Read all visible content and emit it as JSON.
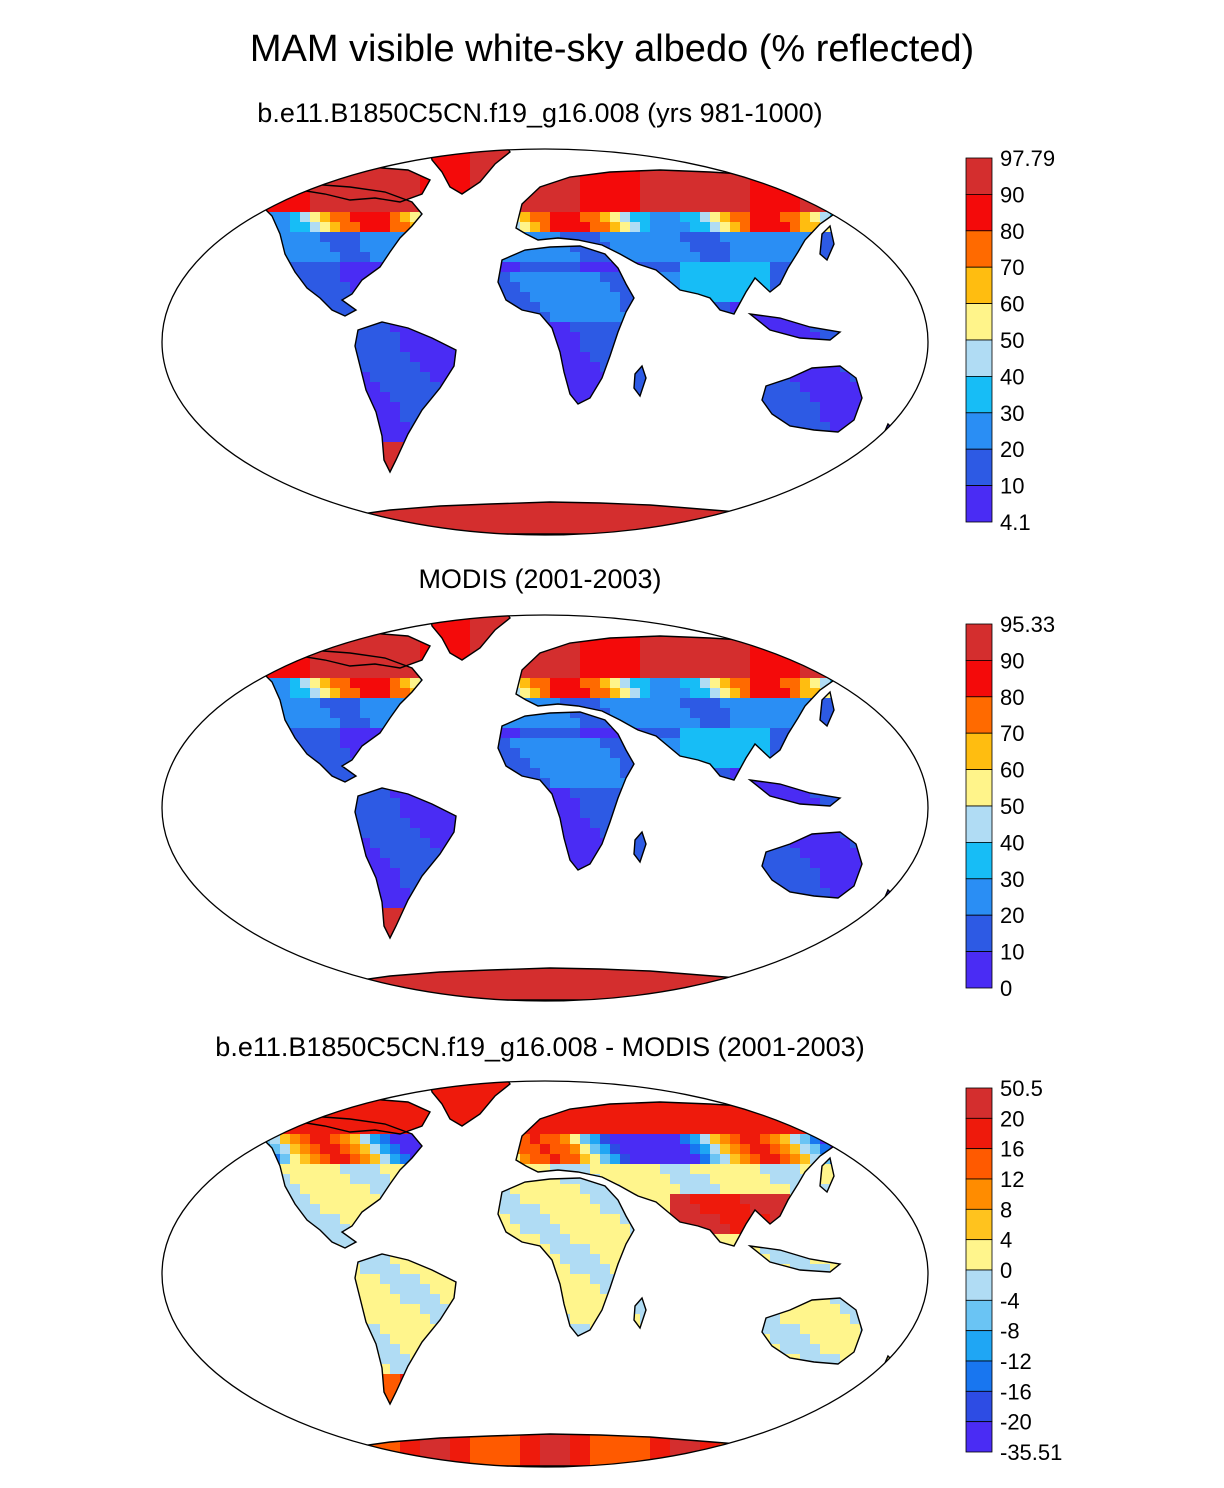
{
  "main_title": "MAM visible white-sky albedo (% reflected)",
  "panels": [
    {
      "title": "b.e11.B1850C5CN.f19_g16.008 (yrs 981-1000)",
      "kind": "albedo",
      "colorbar": {
        "labels": [
          "97.79",
          "90",
          "80",
          "70",
          "60",
          "50",
          "40",
          "30",
          "20",
          "10",
          "4.1"
        ],
        "colors": [
          "#d42e2e",
          "#f40a0a",
          "#ff6a00",
          "#ffbd10",
          "#fff48a",
          "#b0dcf4",
          "#17bdf6",
          "#2a8ef4",
          "#2d5ae4",
          "#4a2cf4"
        ]
      }
    },
    {
      "title": "MODIS (2001-2003)",
      "kind": "albedo",
      "colorbar": {
        "labels": [
          "95.33",
          "90",
          "80",
          "70",
          "60",
          "50",
          "40",
          "30",
          "20",
          "10",
          "0"
        ],
        "colors": [
          "#d42e2e",
          "#f40a0a",
          "#ff6a00",
          "#ffbd10",
          "#fff48a",
          "#b0dcf4",
          "#17bdf6",
          "#2a8ef4",
          "#2d5ae4",
          "#4a2cf4"
        ]
      }
    },
    {
      "title": "b.e11.B1850C5CN.f19_g16.008 - MODIS (2001-2003)",
      "kind": "difference",
      "colorbar": {
        "labels": [
          "50.5",
          "20",
          "16",
          "12",
          "8",
          "4",
          "0",
          "-4",
          "-8",
          "-12",
          "-16",
          "-20",
          "-35.51"
        ],
        "colors": [
          "#d42e2e",
          "#ee1a0c",
          "#ff5a00",
          "#ff8c00",
          "#ffc31e",
          "#fff58c",
          "#b0dcf4",
          "#6ac4f4",
          "#1fa6f4",
          "#1876f0",
          "#2d4ce4",
          "#4a2cf4"
        ]
      }
    }
  ]
}
